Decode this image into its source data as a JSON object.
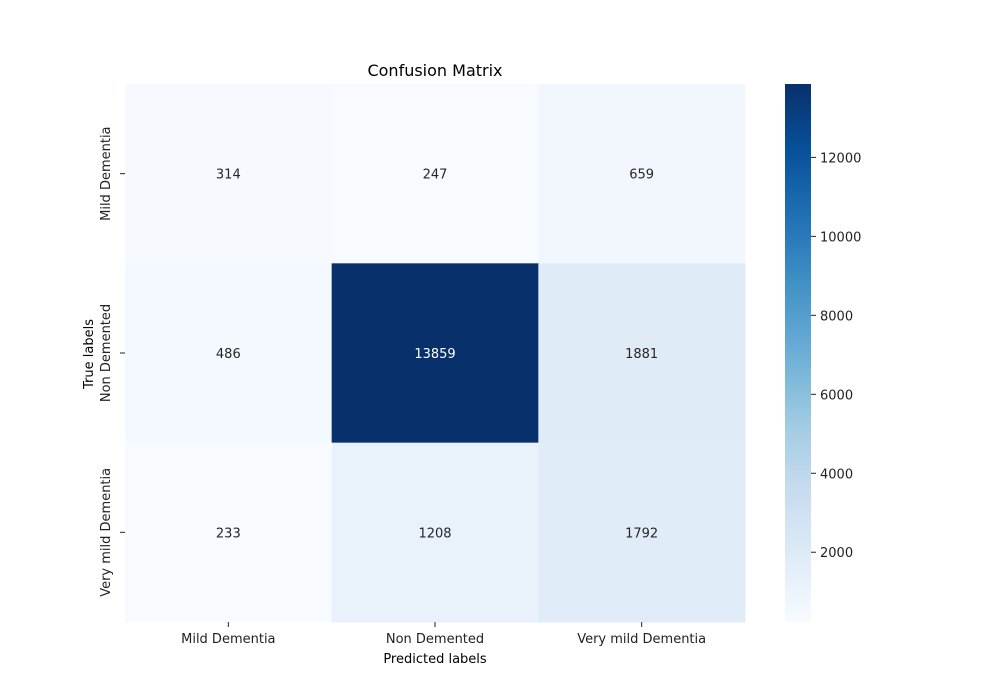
{
  "chart_data": {
    "type": "heatmap",
    "title": "Confusion Matrix",
    "xlabel": "Predicted labels",
    "ylabel": "True labels",
    "x_categories": [
      "Mild Dementia",
      "Non Demented",
      "Very mild Dementia"
    ],
    "y_categories": [
      "Mild Dementia",
      "Non Demented",
      "Very mild Dementia"
    ],
    "values": [
      [
        314,
        247,
        659
      ],
      [
        486,
        13859,
        1881
      ],
      [
        233,
        1208,
        1792
      ]
    ],
    "colormap": "Blues",
    "colorbar": {
      "range": [
        233,
        13859
      ],
      "ticks": [
        "2000",
        "4000",
        "6000",
        "8000",
        "10000",
        "12000"
      ]
    },
    "cell_labels": [
      "314",
      "247",
      "659",
      "486",
      "13859",
      "1881",
      "233",
      "1208",
      "1792"
    ]
  }
}
